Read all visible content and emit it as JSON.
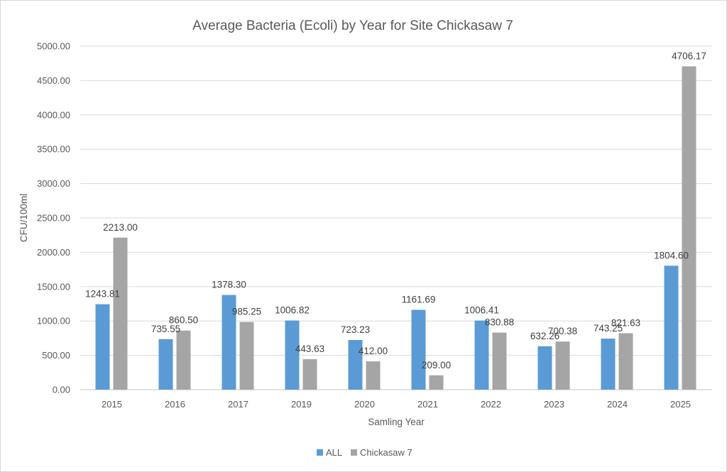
{
  "chart_data": {
    "type": "bar",
    "title": "Average Bacteria (Ecoli) by Year for Site Chickasaw 7",
    "xlabel": "Samling Year",
    "ylabel": "CFU/100ml",
    "ylim": [
      0,
      5000
    ],
    "yticks": [
      "0.00",
      "500.00",
      "1000.00",
      "1500.00",
      "2000.00",
      "2500.00",
      "3000.00",
      "3500.00",
      "4000.00",
      "4500.00",
      "5000.00"
    ],
    "categories": [
      "2015",
      "2016",
      "2017",
      "2019",
      "2020",
      "2021",
      "2022",
      "2023",
      "2024",
      "2025"
    ],
    "series": [
      {
        "name": "ALL",
        "color": "#5b9bd5",
        "values": [
          1243.81,
          735.55,
          1378.3,
          1006.82,
          723.23,
          1161.69,
          1006.41,
          632.26,
          743.25,
          1804.6
        ],
        "labels": [
          "1243.81",
          "735.55",
          "1378.30",
          "1006.82",
          "723.23",
          "1161.69",
          "1006.41",
          "632.26",
          "743.25",
          "1804.60"
        ]
      },
      {
        "name": "Chickasaw 7",
        "color": "#a5a5a5",
        "values": [
          2213.0,
          860.5,
          985.25,
          443.63,
          412.0,
          209.0,
          830.88,
          700.38,
          821.63,
          4706.17
        ],
        "labels": [
          "2213.00",
          "860.50",
          "985.25",
          "443.63",
          "412.00",
          "209.00",
          "830.88",
          "700.38",
          "821.63",
          "4706.17"
        ]
      }
    ],
    "grid": true,
    "legend_position": "bottom"
  }
}
